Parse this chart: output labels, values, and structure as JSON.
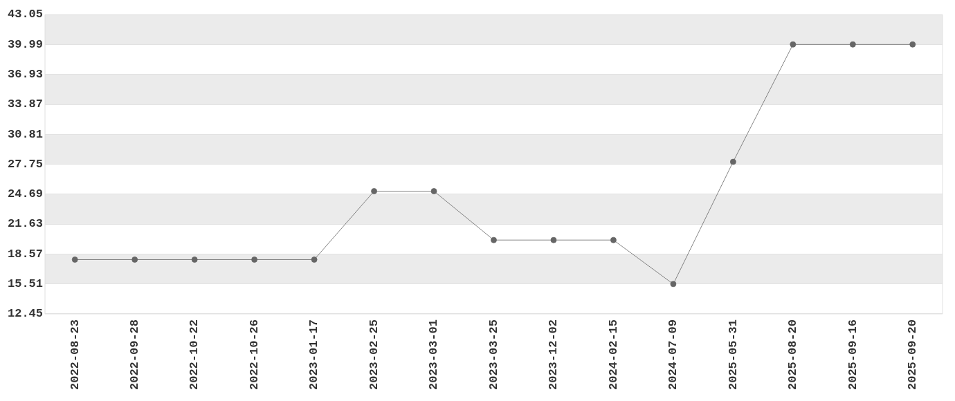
{
  "chart_data": {
    "type": "line",
    "categories": [
      "2022-08-23",
      "2022-09-28",
      "2022-10-22",
      "2022-10-26",
      "2023-01-17",
      "2023-02-25",
      "2023-03-01",
      "2023-03-25",
      "2023-12-02",
      "2024-02-15",
      "2024-07-09",
      "2025-05-31",
      "2025-08-20",
      "2025-09-16",
      "2025-09-20"
    ],
    "series": [
      {
        "color": "#666666",
        "values": [
          18.0,
          18.0,
          18.0,
          18.0,
          18.0,
          25.0,
          25.0,
          20.0,
          20.0,
          20.0,
          15.5,
          28.0,
          40.0,
          40.0,
          40.0
        ]
      }
    ],
    "ylim": [
      12.45,
      43.05
    ],
    "yticks": [
      12.45,
      15.51,
      18.57,
      21.63,
      24.69,
      27.75,
      30.81,
      33.87,
      36.93,
      39.99,
      43.05
    ],
    "grid": "y",
    "legend": false,
    "marker": "circle",
    "line_style": "solid"
  }
}
